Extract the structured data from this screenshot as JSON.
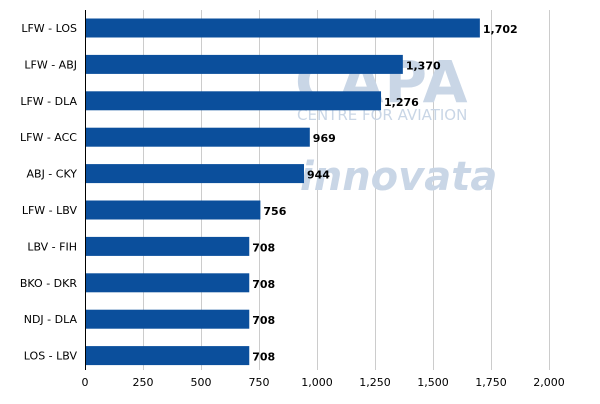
{
  "chart_data": {
    "type": "bar",
    "orientation": "horizontal",
    "categories": [
      "LFW - LOS",
      "LFW - ABJ",
      "LFW - DLA",
      "LFW - ACC",
      "ABJ - CKY",
      "LFW - LBV",
      "LBV - FIH",
      "BKO - DKR",
      "NDJ - DLA",
      "LOS - LBV"
    ],
    "values": [
      1702,
      1370,
      1276,
      969,
      944,
      756,
      708,
      708,
      708,
      708
    ],
    "value_labels": [
      "1,702",
      "1,370",
      "1,276",
      "969",
      "944",
      "756",
      "708",
      "708",
      "708",
      "708"
    ],
    "title": "",
    "xlabel": "",
    "ylabel": "",
    "xlim": [
      0,
      2000
    ],
    "ticks": [
      0,
      250,
      500,
      750,
      1000,
      1250,
      1500,
      1750,
      2000
    ],
    "tick_labels": [
      "0",
      "250",
      "500",
      "750",
      "1,000",
      "1,250",
      "1,500",
      "1,750",
      "2,000"
    ],
    "grid": "vertical",
    "legend": "none",
    "bar_color": "#0b4f9c"
  },
  "watermarks": {
    "capa": "CAPA",
    "capa_sub": "CENTRE FOR AVIATION",
    "innovata": "innovata"
  }
}
